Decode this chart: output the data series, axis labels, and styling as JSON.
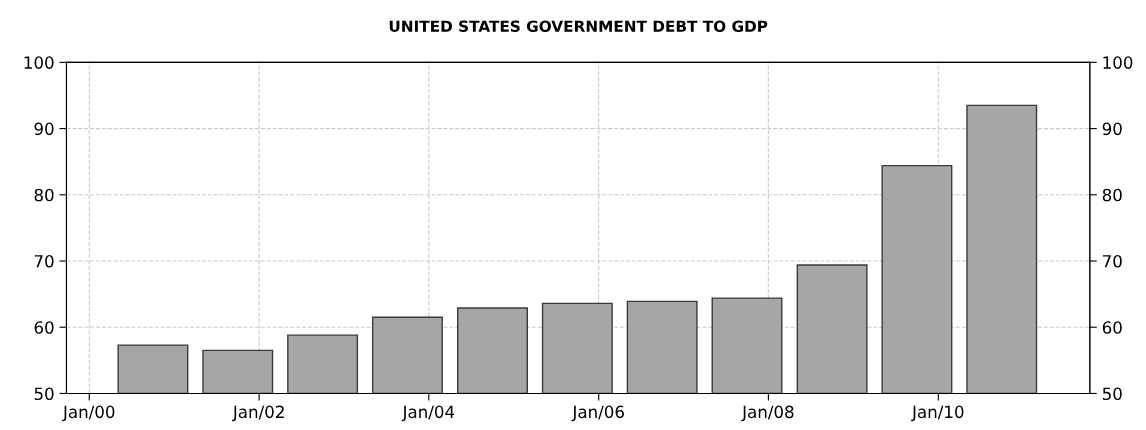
{
  "chart_data": {
    "type": "bar",
    "title": "UNITED STATES GOVERNMENT DEBT TO GDP",
    "x": [
      "2000-10-01",
      "2001-10-01",
      "2002-10-01",
      "2003-10-01",
      "2004-10-01",
      "2005-10-01",
      "2006-10-01",
      "2007-10-01",
      "2008-10-01",
      "2009-10-01",
      "2010-10-01"
    ],
    "series": [
      {
        "color": "#a6a6a6",
        "values": [
          57.3,
          56.5,
          58.8,
          61.5,
          62.9,
          63.6,
          63.9,
          64.4,
          69.4,
          84.4,
          93.5
        ]
      }
    ],
    "xlim": [
      "1999-09-25",
      "2011-10-15"
    ],
    "xticks": [
      {
        "value": "2000-01-01",
        "label": "Jan/00"
      },
      {
        "value": "2002-01-01",
        "label": "Jan/02"
      },
      {
        "value": "2004-01-01",
        "label": "Jan/04"
      },
      {
        "value": "2006-01-01",
        "label": "Jan/06"
      },
      {
        "value": "2008-01-01",
        "label": "Jan/08"
      },
      {
        "value": "2010-01-01",
        "label": "Jan/10"
      }
    ],
    "ylim": [
      50,
      100
    ],
    "yticks": [
      50,
      60,
      70,
      80,
      90,
      100
    ],
    "y2lim": [
      50,
      100
    ],
    "y2ticks": [
      50,
      60,
      70,
      80,
      90,
      100
    ],
    "grid": true
  }
}
